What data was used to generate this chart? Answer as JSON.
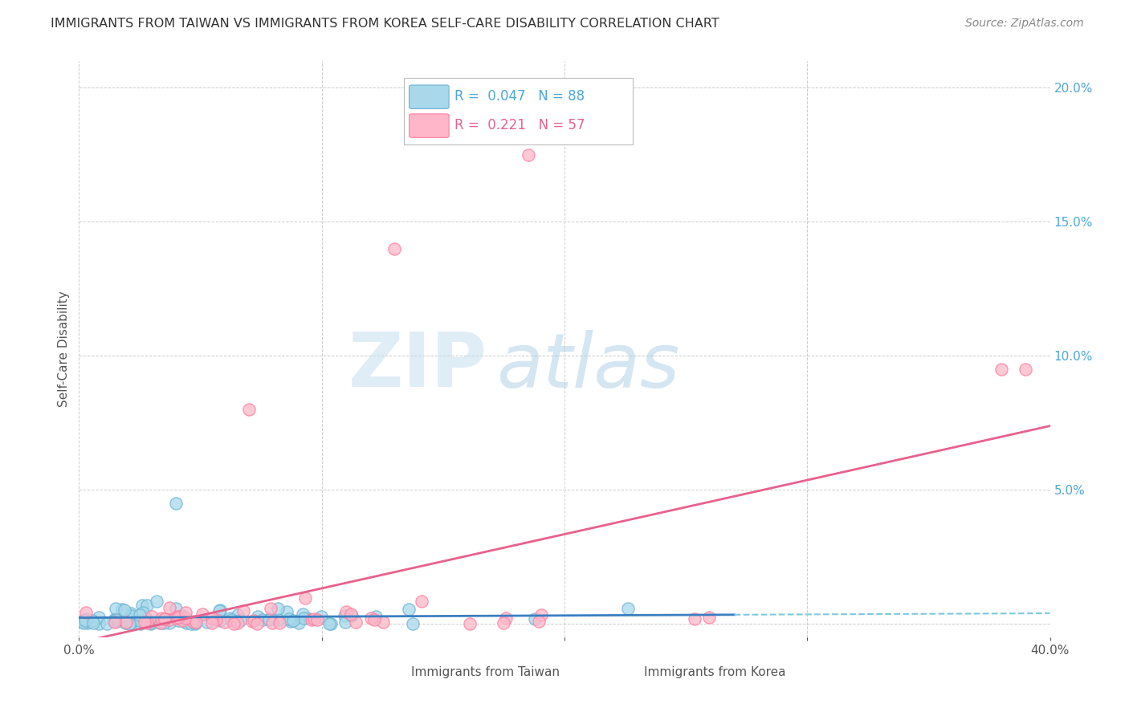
{
  "title": "IMMIGRANTS FROM TAIWAN VS IMMIGRANTS FROM KOREA SELF-CARE DISABILITY CORRELATION CHART",
  "source": "Source: ZipAtlas.com",
  "ylabel": "Self-Care Disability",
  "xlim": [
    0.0,
    0.4
  ],
  "ylim": [
    -0.005,
    0.21
  ],
  "taiwan_color": "#a8d8ea",
  "taiwan_edge_color": "#6cb4d4",
  "korea_color": "#ffb6c8",
  "korea_edge_color": "#ff7fa0",
  "taiwan_line_color": "#3a7fc1",
  "taiwan_dash_color": "#7ec8e3",
  "korea_line_color": "#e8618c",
  "taiwan_R": 0.047,
  "taiwan_N": 88,
  "korea_R": 0.221,
  "korea_N": 57,
  "watermark_zip": "ZIP",
  "watermark_atlas": "atlas",
  "background_color": "#ffffff",
  "grid_color": "#cccccc",
  "yaxis_label_color": "#4da6d9",
  "title_color": "#333333",
  "source_color": "#888888",
  "legend_edge_color": "#bbbbbb"
}
